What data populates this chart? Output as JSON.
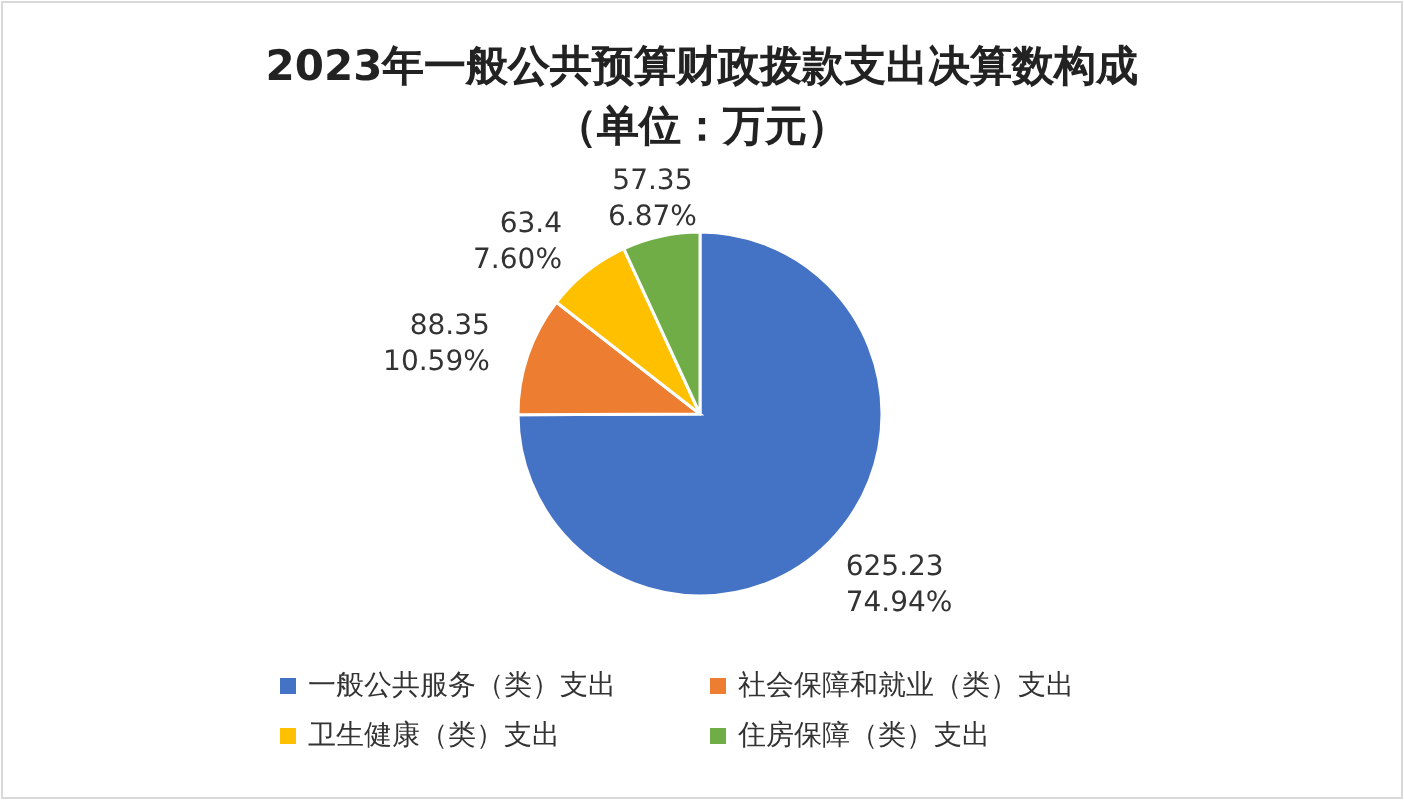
{
  "chart_data": {
    "type": "pie",
    "title": "2023年一般公共预算财政拨款支出决算数构成",
    "subtitle": "（单位：万元）",
    "categories": [
      "一般公共服务（类）支出",
      "社会保障和就业（类）支出",
      "卫生健康（类）支出",
      "住房保障（类）支出"
    ],
    "values": [
      625.23,
      88.35,
      63.4,
      57.35
    ],
    "colors": [
      "#4472c4",
      "#ed7d31",
      "#ffc000",
      "#70ad47"
    ],
    "value_labels": [
      "625.23\n74.94%",
      "88.35\n10.59%",
      "63.4\n7.60%",
      "57.35\n6.87%"
    ],
    "legend": "bottom"
  }
}
